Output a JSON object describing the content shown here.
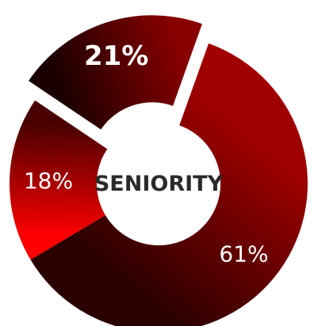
{
  "chart_data": {
    "type": "pie",
    "center_label": "SENIORITY",
    "slices": [
      {
        "label": "21%",
        "value": 21,
        "color_light": "#8a0000",
        "color_dark": "#1a0000",
        "exploded": true,
        "emphasis": true
      },
      {
        "label": "61%",
        "value": 61,
        "color_light": "#a00000",
        "color_dark": "#2a0000",
        "exploded": false,
        "emphasis": false
      },
      {
        "label": "18%",
        "value": 18,
        "color_light": "#ff0000",
        "color_dark": "#4a0000",
        "exploded": false,
        "emphasis": false
      }
    ]
  }
}
